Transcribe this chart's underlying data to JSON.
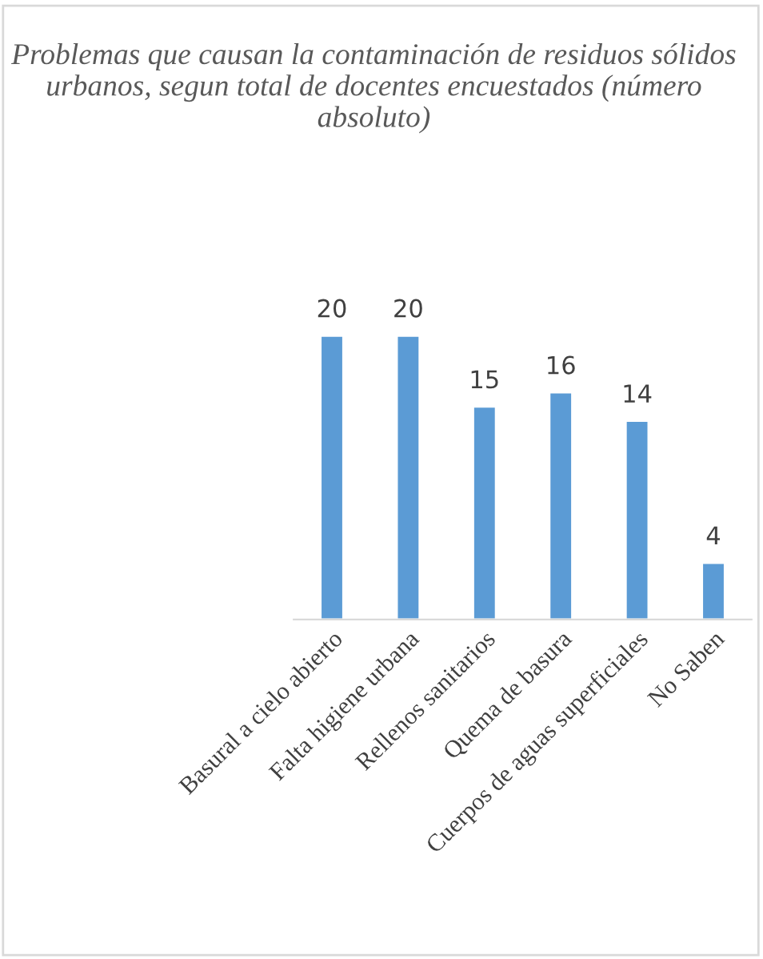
{
  "chart_data": {
    "type": "bar",
    "title": "Problemas que causan la contaminación de residuos sólidos urbanos, segun total de docentes encuestados (número absoluto)",
    "categories": [
      "Basural a cielo abierto",
      "Falta higiene urbana",
      "Rellenos sanitarios",
      "Quema de basura",
      "Cuerpos de aguas superficiales",
      "No Saben"
    ],
    "values": [
      20,
      20,
      15,
      16,
      14,
      4
    ],
    "color": "#5b9bd5",
    "data_labels": true
  }
}
